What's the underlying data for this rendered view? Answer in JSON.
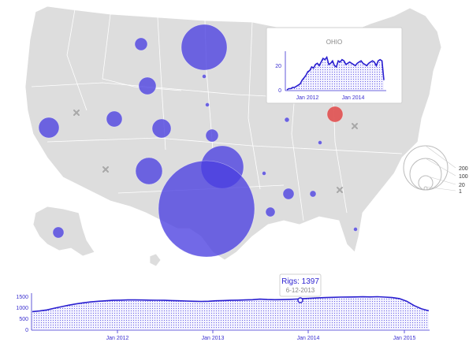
{
  "inset": {
    "title": "OHIO",
    "y_ticks": [
      "0",
      "20"
    ],
    "x_ticks": [
      "Jan 2012",
      "Jan 2014"
    ],
    "series": [
      0,
      1,
      1,
      2,
      2,
      3,
      4,
      5,
      8,
      10,
      12,
      15,
      16,
      19,
      18,
      21,
      22,
      20,
      23,
      26,
      25,
      27,
      21,
      22,
      24,
      20,
      19,
      24,
      23,
      25,
      24,
      21,
      22,
      23,
      22,
      21,
      20,
      22,
      23,
      24,
      22,
      21,
      20,
      22,
      23,
      24,
      23,
      20,
      24,
      25,
      24,
      8
    ]
  },
  "legend": {
    "labels": [
      "200",
      "100",
      "20",
      "1"
    ],
    "values": [
      200,
      100,
      20,
      1
    ]
  },
  "tooltip": {
    "main": "Rigs: 1397",
    "sub": "6-12-2013"
  },
  "timeline": {
    "y_ticks": [
      "0",
      "500",
      "1000",
      "1500"
    ],
    "x_ticks": [
      "Jan 2012",
      "Jan 2013",
      "Jan 2014",
      "Jan 2015"
    ],
    "y_max": 1600,
    "series": [
      820,
      850,
      900,
      980,
      1050,
      1120,
      1180,
      1230,
      1270,
      1300,
      1320,
      1340,
      1350,
      1360,
      1360,
      1355,
      1350,
      1345,
      1340,
      1330,
      1320,
      1310,
      1300,
      1290,
      1300,
      1320,
      1330,
      1340,
      1350,
      1360,
      1370,
      1397,
      1380,
      1370,
      1375,
      1385,
      1400,
      1420,
      1440,
      1460,
      1470,
      1480,
      1490,
      1495,
      1500,
      1505,
      1500,
      1510,
      1490,
      1470,
      1420,
      1300,
      1100,
      950,
      860
    ]
  },
  "colors": {
    "bubble": "#4a3fe0",
    "highlight": "#e05050",
    "line": "#2a1fd0"
  }
}
